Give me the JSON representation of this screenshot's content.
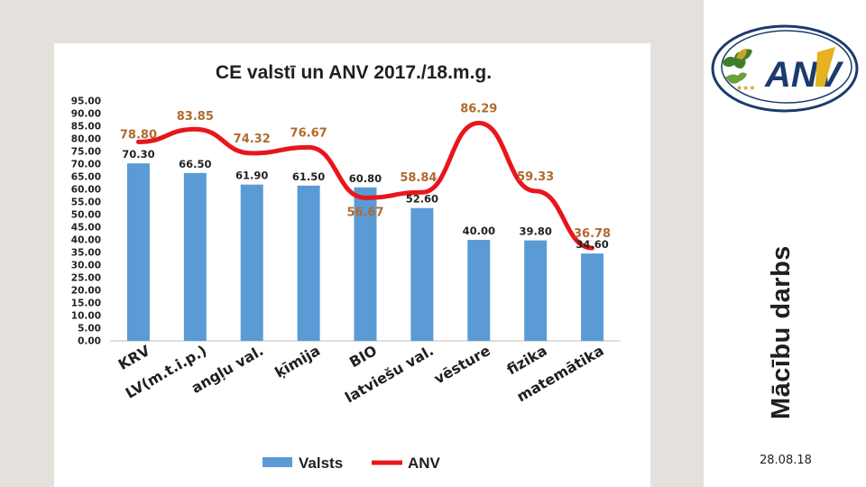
{
  "slide": {
    "vertical_title": "Mācību darbs",
    "date": "28.08.18",
    "logo_text": "ANV",
    "logo_stars": "★★★"
  },
  "colors": {
    "bar": "#5b9bd5",
    "line": "#e8161b",
    "line_label": "#b06a2d",
    "bar_label": "#222222"
  },
  "chart_data": {
    "type": "bar",
    "title": "CE valstī un ANV 2017./18.m.g.",
    "categories": [
      "KRV",
      "LV(m.t.i.p.)",
      "angļu val.",
      "ķīmija",
      "BIO",
      "latviešu val.",
      "vēsture",
      "fizika",
      "matemātika"
    ],
    "series": [
      {
        "name": "Valsts",
        "type": "bar",
        "values": [
          70.3,
          66.5,
          61.9,
          61.5,
          60.8,
          52.6,
          40.0,
          39.8,
          34.6
        ]
      },
      {
        "name": "ANV",
        "type": "line",
        "values": [
          78.8,
          83.85,
          74.32,
          76.67,
          56.67,
          58.84,
          86.29,
          59.33,
          36.78
        ]
      }
    ],
    "bar_labels": [
      "70.30",
      "66.50",
      "61.90",
      "61.50",
      "60.80",
      "52.60",
      "40.00",
      "39.80",
      "34.60"
    ],
    "line_labels": [
      "78.80",
      "83.85",
      "74.32",
      "76.67",
      "56.67",
      "58.84",
      "86.29",
      "59.33",
      "36.78"
    ],
    "yticks": [
      "0.00",
      "5.00",
      "10.00",
      "15.00",
      "20.00",
      "25.00",
      "30.00",
      "35.00",
      "40.00",
      "45.00",
      "50.00",
      "55.00",
      "60.00",
      "65.00",
      "70.00",
      "75.00",
      "80.00",
      "85.00",
      "90.00",
      "95.00"
    ],
    "ylim": [
      0,
      95
    ],
    "legend_position": "bottom",
    "grid": false
  }
}
